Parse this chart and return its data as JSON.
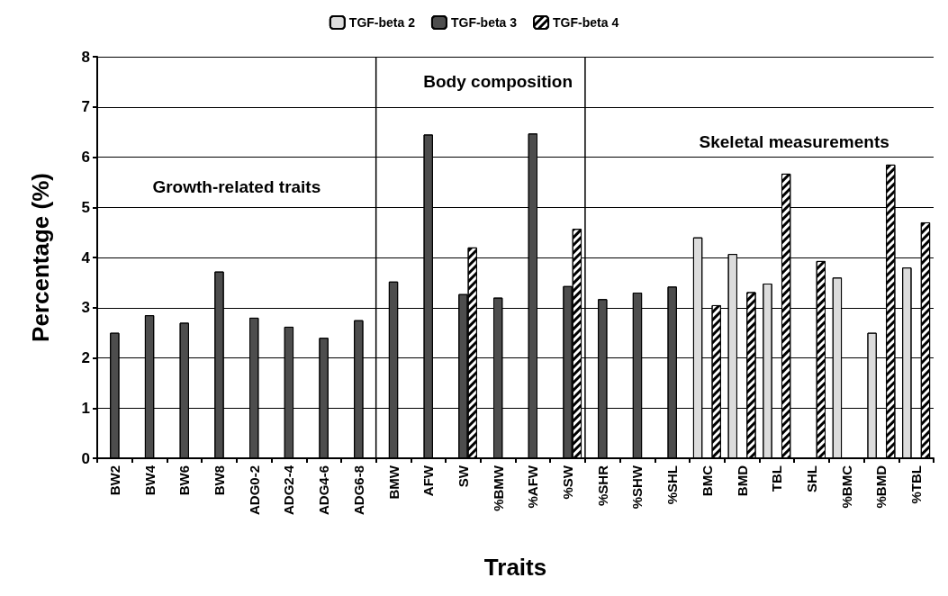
{
  "chart_data": {
    "type": "bar",
    "xlabel": "Traits",
    "ylabel": "Percentage (%)",
    "categories": [
      "BW2",
      "BW4",
      "BW6",
      "BW8",
      "ADG0-2",
      "ADG2-4",
      "ADG4-6",
      "ADG6-8",
      "BMW",
      "AFW",
      "SW",
      "%BMW",
      "%AFW",
      "%SW",
      "%SHR",
      "%SHW",
      "%SHL",
      "BMC",
      "BMD",
      "TBL",
      "SHL",
      "%BMC",
      "%BMD",
      "%TBL"
    ],
    "series": [
      {
        "name": "TGF-beta 2",
        "color": "#dcdcdc",
        "values": [
          null,
          null,
          null,
          null,
          null,
          null,
          null,
          null,
          null,
          null,
          null,
          null,
          null,
          null,
          null,
          null,
          null,
          4.4,
          4.07,
          3.48,
          null,
          3.6,
          2.5,
          3.8
        ]
      },
      {
        "name": "TGF-beta 3",
        "color": "#4d4d4d",
        "values": [
          2.5,
          2.85,
          2.7,
          3.72,
          2.8,
          2.62,
          2.4,
          2.75,
          3.52,
          6.45,
          3.27,
          3.2,
          6.47,
          3.43,
          3.17,
          3.3,
          3.42,
          null,
          null,
          null,
          null,
          null,
          null,
          null
        ]
      },
      {
        "name": "TGF-beta 4",
        "color": "#ffffff",
        "values": [
          null,
          null,
          null,
          null,
          null,
          null,
          null,
          null,
          null,
          null,
          4.2,
          null,
          null,
          4.57,
          null,
          null,
          null,
          3.05,
          3.31,
          5.67,
          3.93,
          null,
          5.85,
          4.7
        ]
      }
    ],
    "ylim": [
      0,
      8
    ],
    "yticks": [
      0,
      1,
      2,
      3,
      4,
      5,
      6,
      7,
      8
    ],
    "grid": "y",
    "legend": "top",
    "annotations": [
      "Growth-related traits",
      "Body composition",
      "Skeletal measurements"
    ]
  }
}
